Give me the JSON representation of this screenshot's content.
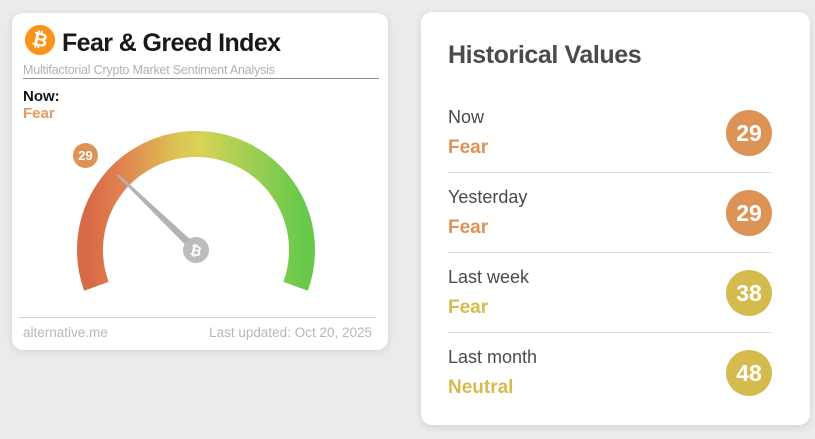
{
  "index_card": {
    "title": "Fear & Greed Index",
    "subtitle": "Multifactorial Crypto Market Sentiment Analysis",
    "now_label": "Now:",
    "now_sentiment": "Fear",
    "now_color": "#e39a60",
    "source": "alternative.me",
    "last_updated": "Last updated: Oct 20, 2025",
    "bitcoin_glyph": "₿"
  },
  "historical_card": {
    "title": "Historical Values"
  },
  "chart_data": {
    "type": "gauge",
    "title": "Fear & Greed Index",
    "value": 29,
    "value_label": "Fear",
    "range": [
      0,
      100
    ],
    "arc_span_degrees": 220,
    "badge_color": "#dd9256",
    "gauge_colors": [
      {
        "offset": "0%",
        "color": "#d96a47"
      },
      {
        "offset": "18%",
        "color": "#e0894f"
      },
      {
        "offset": "40%",
        "color": "#ddc154"
      },
      {
        "offset": "52%",
        "color": "#d9d355"
      },
      {
        "offset": "70%",
        "color": "#abd052"
      },
      {
        "offset": "100%",
        "color": "#69c94c"
      }
    ],
    "historical": [
      {
        "period": "Now",
        "sentiment": "Fear",
        "value": 29,
        "color": "#dd9256"
      },
      {
        "period": "Yesterday",
        "sentiment": "Fear",
        "value": 29,
        "color": "#dd9256"
      },
      {
        "period": "Last week",
        "sentiment": "Fear",
        "value": 38,
        "color": "#d5bb4e"
      },
      {
        "period": "Last month",
        "sentiment": "Neutral",
        "value": 48,
        "color": "#d5bb4e"
      }
    ]
  },
  "colors": {
    "background": "#ebebeb",
    "card": "#ffffff",
    "bitcoin_orange": "#f7931a",
    "fear_orange": "#dd9256",
    "neutral_gold": "#d5bb4e",
    "needle_gray": "#b3b3b3",
    "muted_text": "#b5b5b5",
    "heading_text": "#4a4a4a"
  }
}
